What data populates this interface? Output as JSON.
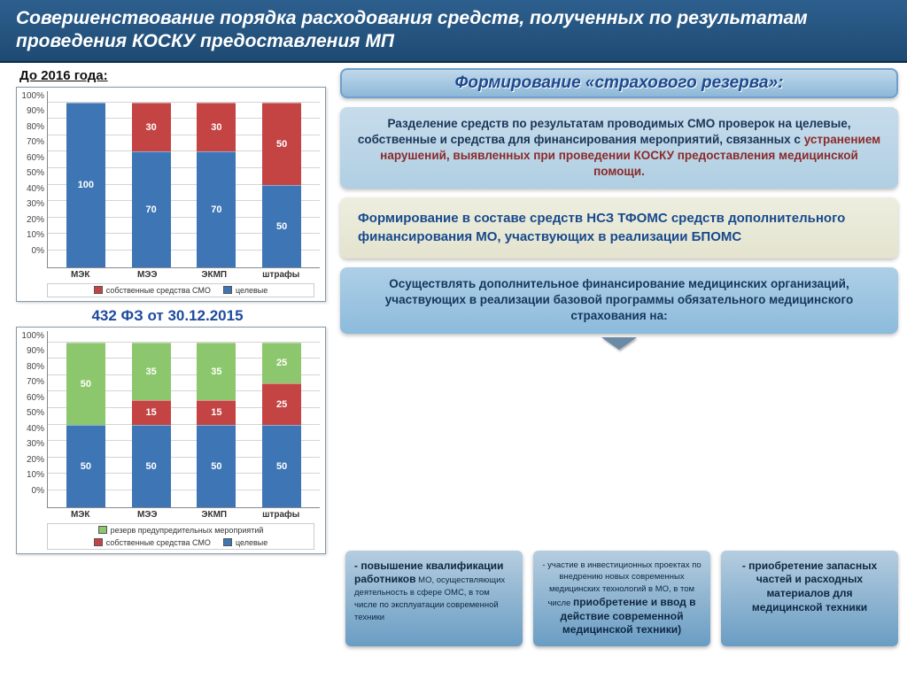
{
  "title": "Совершенствование порядка расходования средств, полученных по результатам проведения КОСКУ предоставления МП",
  "left": {
    "subhead": "До 2016 года:",
    "law": "432 ФЗ от 30.12.2015",
    "chart1": {
      "type": "stacked-bar",
      "categories": [
        "МЭК",
        "МЭЭ",
        "ЭКМП",
        "штрафы"
      ],
      "series": [
        {
          "name": "целевые",
          "color": "#3e76b5",
          "values": [
            100,
            70,
            70,
            50
          ]
        },
        {
          "name": "собственные средства СМО",
          "color": "#c44444",
          "values": [
            0,
            30,
            30,
            50
          ]
        }
      ],
      "ylim": [
        0,
        100
      ],
      "ytick_step": 10,
      "grid_color": "#d4d4d4",
      "background": "#ffffff"
    },
    "chart2": {
      "type": "stacked-bar",
      "categories": [
        "МЭК",
        "МЭЭ",
        "ЭКМП",
        "штрафы"
      ],
      "series": [
        {
          "name": "целевые",
          "color": "#3e76b5",
          "values": [
            50,
            50,
            50,
            50
          ]
        },
        {
          "name": "собственные средства СМО",
          "color": "#c44444",
          "values": [
            0,
            15,
            15,
            25
          ]
        },
        {
          "name": "резерв предупредительных мероприятий",
          "color": "#8cc76d",
          "values": [
            50,
            35,
            35,
            25
          ]
        }
      ],
      "ylim": [
        0,
        100
      ],
      "ytick_step": 10,
      "grid_color": "#d4d4d4",
      "background": "#ffffff"
    }
  },
  "right": {
    "header": "Формирование «страхового резерва»:",
    "panel1_a": "Разделение средств по результатам проводимых СМО проверок на целевые, собственные и средства для финансирования мероприятий, связанных с ",
    "panel1_b": "устранением нарушений, выявленных при проведении КОСКУ предоставления медицинской помощи.",
    "panel2": "Формирование в составе средств НСЗ ТФОМС средств дополнительного финансирования МО, участвующих в реализации БПОМС",
    "panel3": "Осуществлять дополнительное финансирование медицинских организаций, участвующих в реализации базовой программы обязательного медицинского страхования на:"
  },
  "cards": {
    "c1_bold": "- повышение квалификации работников",
    "c1_small": " МО, осуществляющих деятельность в сфере ОМС, в том числе по эксплуатации современной техники",
    "c2_a": "- участие в инвестиционных проектах по внедрению новых современных медицинских технологий в МО, в том числе ",
    "c2_b": "приобретение и ввод в действие современной медицинской техники)",
    "c3": "- приобретение запасных частей и расходных материалов для медицинской техники"
  }
}
